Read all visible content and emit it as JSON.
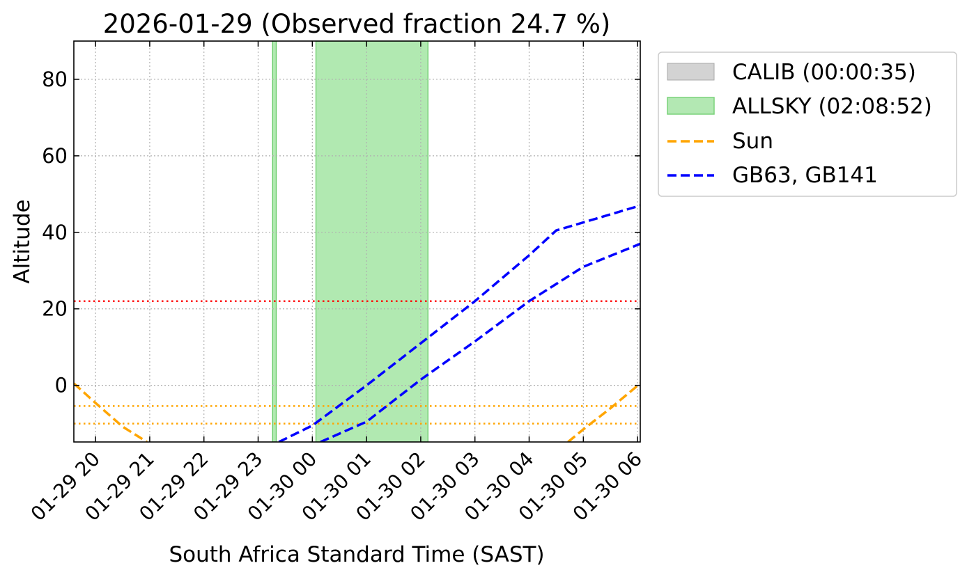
{
  "chart_data": {
    "type": "line",
    "title": "2026-01-29 (Observed fraction 24.7 %)",
    "xlabel": "South Africa Standard Time (SAST)",
    "ylabel": "Altitude",
    "xlim": [
      "01-29 19:36",
      "01-30 06:03"
    ],
    "ylim": [
      -14.8,
      90
    ],
    "yticks": [
      0,
      20,
      40,
      60,
      80
    ],
    "xticks": [
      "01-29 20",
      "01-29 21",
      "01-29 22",
      "01-29 23",
      "01-30 00",
      "01-30 01",
      "01-30 02",
      "01-30 03",
      "01-30 04",
      "01-30 05",
      "01-30 06"
    ],
    "grid": true,
    "legend_placement": "outside upper right",
    "bands": [
      {
        "name": "CALIB (00:00:35)",
        "color": "#d3d3d3",
        "intervals": []
      },
      {
        "name": "ALLSKY (02:08:52)",
        "color": "#90e090",
        "intervals": [
          [
            "01-29 23:16",
            "01-29 23:20"
          ],
          [
            "01-30 00:04",
            "01-30 02:08"
          ]
        ]
      }
    ],
    "hlines": [
      {
        "y": 22,
        "color": "#ff0000",
        "style": "dotted"
      },
      {
        "y": -5.4,
        "color": "#ffa500",
        "style": "dotted"
      },
      {
        "y": -10,
        "color": "#ffa500",
        "style": "dotted"
      }
    ],
    "series": [
      {
        "name": "Sun",
        "color": "#ffa500",
        "style": "dashed",
        "segments": [
          [
            [
              "01-29 19:36",
              0.5
            ],
            [
              "01-29 20:00",
              -4.6
            ],
            [
              "01-29 20:30",
              -10.8
            ],
            [
              "01-29 20:57",
              -14.8
            ]
          ],
          [
            [
              "01-30 04:43",
              -14.8
            ],
            [
              "01-30 05:00",
              -11.5
            ],
            [
              "01-30 05:30",
              -6.0
            ],
            [
              "01-30 06:03",
              0.5
            ]
          ]
        ]
      },
      {
        "name": "GB63, GB141",
        "color": "#0000ff",
        "style": "dashed",
        "segments": [
          [
            [
              "01-29 23:23",
              -14.8
            ],
            [
              "01-30 00:00",
              -10.5
            ],
            [
              "01-30 01:00",
              0
            ],
            [
              "01-30 02:00",
              11
            ],
            [
              "01-30 03:00",
              22
            ],
            [
              "01-30 04:00",
              34
            ],
            [
              "01-30 04:30",
              40.5
            ],
            [
              "01-30 06:03",
              47
            ]
          ],
          [
            [
              "01-30 00:09",
              -14.8
            ],
            [
              "01-30 01:00",
              -9.5
            ],
            [
              "01-30 02:00",
              1.5
            ],
            [
              "01-30 03:00",
              11.5
            ],
            [
              "01-30 04:00",
              22
            ],
            [
              "01-30 05:00",
              31
            ],
            [
              "01-30 06:03",
              37
            ]
          ]
        ]
      }
    ]
  }
}
